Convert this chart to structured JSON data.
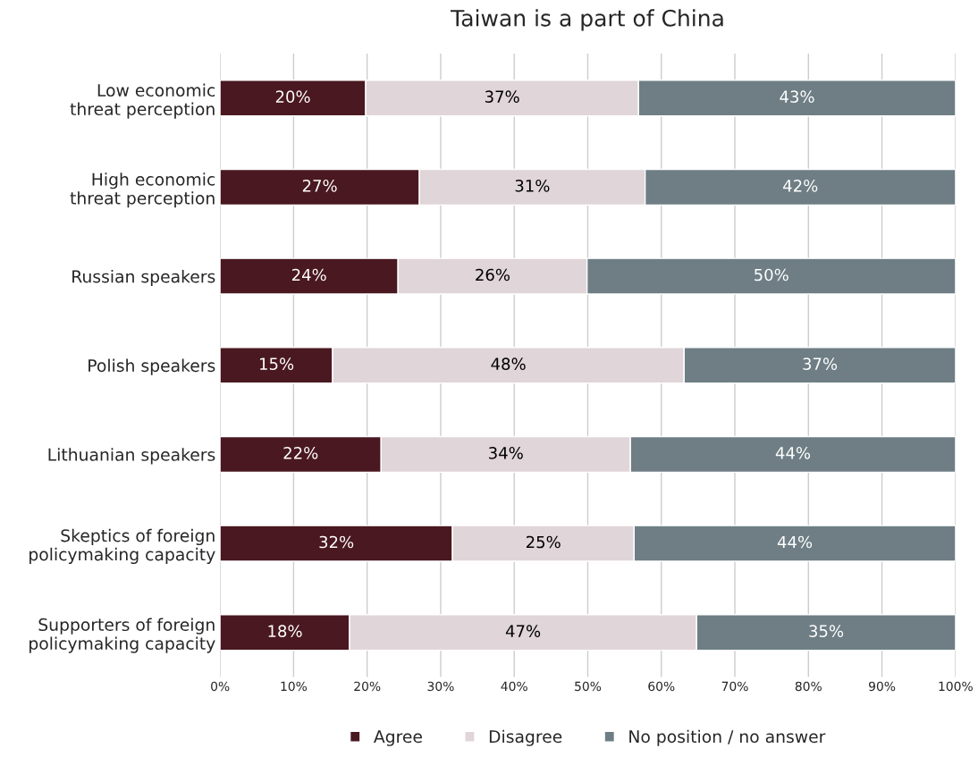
{
  "chart_data": {
    "type": "bar",
    "title": "Taiwan is a part of China",
    "orientation": "horizontal",
    "stacked": true,
    "categories": [
      "Low economic\nthreat perception",
      "High economic\nthreat perception",
      "Russian speakers",
      "Polish speakers",
      "Lithuanian speakers",
      "Skeptics of foreign\npolicymaking capacity",
      "Supporters of foreign\npolicymaking capacity"
    ],
    "series": [
      {
        "name": "Agree",
        "color": "#4a1820",
        "values": [
          19.8,
          27.1,
          24.2,
          15.3,
          21.9,
          31.6,
          17.6
        ],
        "value_labels": [
          "20%",
          "27%",
          "24%",
          "15%",
          "22%",
          "32%",
          "18%"
        ]
      },
      {
        "name": "Disagree",
        "color": "#e0d5d8",
        "values": [
          37.1,
          30.7,
          25.7,
          47.8,
          33.9,
          24.7,
          47.2
        ],
        "value_labels": [
          "37%",
          "31%",
          "26%",
          "48%",
          "34%",
          "25%",
          "47%"
        ]
      },
      {
        "name": "No position / no answer",
        "color": "#6e7e84",
        "values": [
          43.1,
          42.2,
          50.1,
          36.9,
          44.2,
          43.7,
          35.2
        ],
        "value_labels": [
          "43%",
          "42%",
          "50%",
          "37%",
          "44%",
          "44%",
          "35%"
        ]
      }
    ],
    "xlim": [
      0,
      100
    ],
    "xticks": [
      {
        "value": 0,
        "label": "0%"
      },
      {
        "value": 10,
        "label": "10%"
      },
      {
        "value": 20,
        "label": "20%"
      },
      {
        "value": 30,
        "label": "30%"
      },
      {
        "value": 40,
        "label": "40%"
      },
      {
        "value": 50,
        "label": "50%"
      },
      {
        "value": 60,
        "label": "60%"
      },
      {
        "value": 70,
        "label": "70%"
      },
      {
        "value": 80,
        "label": "80%"
      },
      {
        "value": 90,
        "label": "90%"
      },
      {
        "value": 100,
        "label": "100%"
      }
    ],
    "grid": "x",
    "legend": "bottom"
  }
}
